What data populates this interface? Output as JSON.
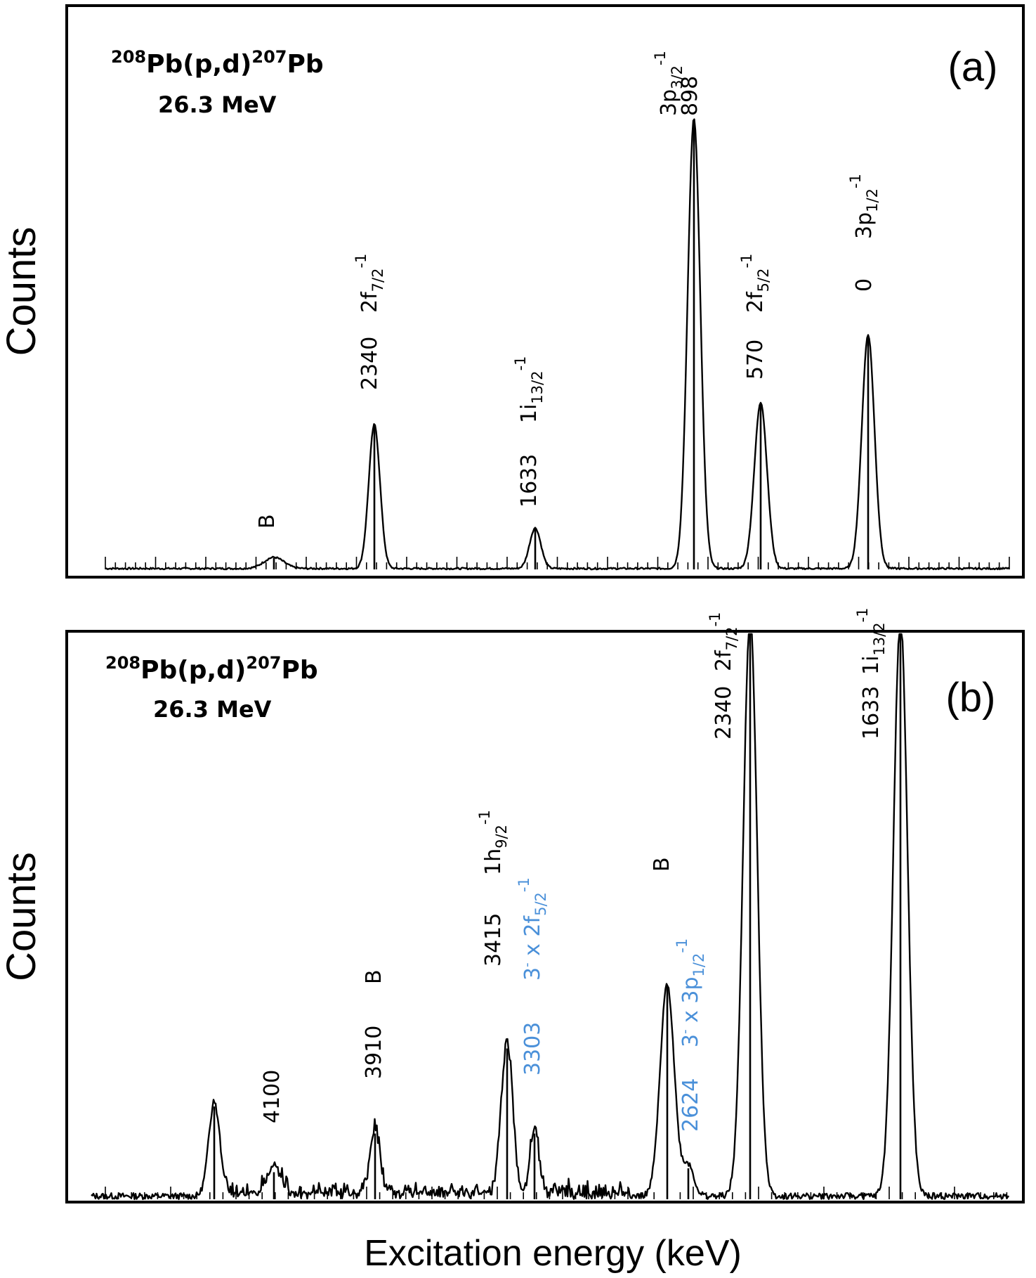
{
  "chart_data": [
    {
      "type": "line",
      "panel_label": "(a)",
      "title": "208Pb(p,d)207Pb",
      "title_parts": {
        "mass_target": "208",
        "target": "Pb(p,d)",
        "mass_product": "207",
        "product": "Pb"
      },
      "subtitle": "26.3 MeV",
      "ylabel": "Counts",
      "xlabel": "Excitation energy (keV)",
      "x_direction": "decreasing",
      "x_axis_tick_labels": false,
      "peaks": [
        {
          "energy_label": "B",
          "state": "",
          "height": 0.025,
          "width": 14
        },
        {
          "energy_label": "2340",
          "state": "2f7/2-1",
          "height": 0.32,
          "width": 8
        },
        {
          "energy_label": "1633",
          "state": "1i13/2-1",
          "height": 0.09,
          "width": 8
        },
        {
          "energy_label": "898",
          "state": "3p3/2-1",
          "height": 1.0,
          "width": 9
        },
        {
          "energy_label": "570",
          "state": "2f5/2-1",
          "height": 0.37,
          "width": 9
        },
        {
          "energy_label": "0",
          "state": "3p1/2-1",
          "height": 0.52,
          "width": 9
        }
      ],
      "labels": [
        {
          "text": "B",
          "color": "#000000"
        },
        {
          "text": "2340",
          "color": "#000000"
        },
        {
          "text": "2f",
          "sub": "7/2",
          "sup": "-1",
          "color": "#000000"
        },
        {
          "text": "1633",
          "color": "#000000"
        },
        {
          "text": "1i",
          "sub": "13/2",
          "sup": "-1",
          "color": "#000000"
        },
        {
          "text": "898",
          "color": "#000000"
        },
        {
          "text": "3p",
          "sub": "3/2",
          "sup": "-1",
          "color": "#000000"
        },
        {
          "text": "570",
          "color": "#000000"
        },
        {
          "text": "2f",
          "sub": "5/2",
          "sup": "-1",
          "color": "#000000"
        },
        {
          "text": "0",
          "color": "#000000"
        },
        {
          "text": "3p",
          "sub": "1/2",
          "sup": "-1",
          "color": "#000000"
        }
      ]
    },
    {
      "type": "line",
      "panel_label": "(b)",
      "title": "208Pb(p,d)207Pb",
      "title_parts": {
        "mass_target": "208",
        "target": "Pb(p,d)",
        "mass_product": "207",
        "product": "Pb"
      },
      "subtitle": "26.3 MeV",
      "ylabel": "Counts",
      "xlabel": "Excitation energy (keV)",
      "x_direction": "decreasing",
      "x_axis_tick_labels": false,
      "peaks": [
        {
          "energy_label": "",
          "state": "",
          "height": 0.24,
          "width": 8
        },
        {
          "energy_label": "4100",
          "state": "",
          "height": 0.07,
          "width": 10
        },
        {
          "energy_label": "3910",
          "state": "B",
          "height": 0.17,
          "width": 7
        },
        {
          "energy_label": "3415",
          "state": "1h9/2-1",
          "height": 0.39,
          "width": 8
        },
        {
          "energy_label": "3303",
          "state": "3- x 2f5/2-1",
          "height": 0.17,
          "width": 6
        },
        {
          "energy_label": "B",
          "state": "",
          "height": 0.55,
          "width": 10
        },
        {
          "energy_label": "2624",
          "state": "3- x 3p1/2-1",
          "height": 0.08,
          "width": 8
        },
        {
          "energy_label": "2340",
          "state": "2f7/2-1",
          "height": 1.5,
          "width": 10
        },
        {
          "energy_label": "1633",
          "state": "1i13/2-1",
          "height": 1.5,
          "width": 10
        }
      ],
      "labels": [
        {
          "text": "4100",
          "color": "#000000"
        },
        {
          "text": "3910",
          "color": "#000000"
        },
        {
          "text": "B",
          "color": "#000000"
        },
        {
          "text": "3415",
          "color": "#000000"
        },
        {
          "text": "1h",
          "sub": "9/2",
          "sup": "-1",
          "color": "#000000"
        },
        {
          "text": "3303",
          "color": "#4a90d9"
        },
        {
          "text": "3- x 2f",
          "sub": "5/2",
          "sup": "-1",
          "color": "#4a90d9"
        },
        {
          "text": "B",
          "color": "#000000"
        },
        {
          "text": "2624",
          "color": "#4a90d9"
        },
        {
          "text": "3- x 3p",
          "sub": "1/2",
          "sup": "-1",
          "color": "#4a90d9"
        },
        {
          "text": "2340",
          "color": "#000000"
        },
        {
          "text": "2f",
          "sub": "7/2",
          "sup": "-1",
          "color": "#000000"
        },
        {
          "text": "1633",
          "color": "#000000"
        },
        {
          "text": "1i",
          "sub": "13/2",
          "sup": "-1",
          "color": "#000000"
        }
      ]
    }
  ],
  "colors": {
    "axis": "#000000",
    "spectrum": "#000000",
    "blue_label": "#4a90d9"
  }
}
